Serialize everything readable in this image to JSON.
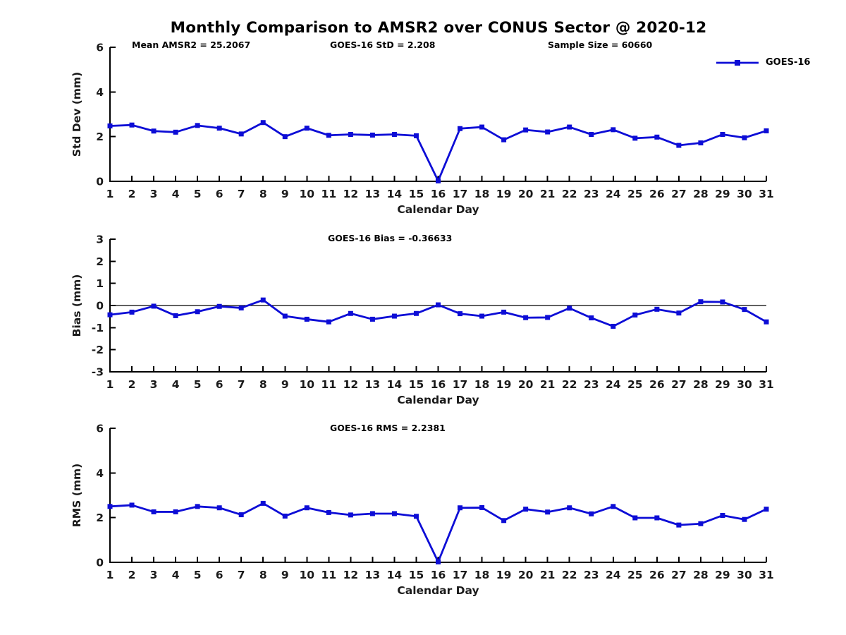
{
  "header": {
    "title": "Monthly Comparison to AMSR2 over CONUS Sector @ 2020-12"
  },
  "colors": {
    "series_blue": "#0d0dd6",
    "axis_black": "#000000",
    "tick_text": "#1a1a1a"
  },
  "chart_data": [
    {
      "type": "line",
      "ylabel": "Std Dev (mm)",
      "xlabel": "Calendar Day",
      "ylim": [
        0,
        6
      ],
      "yticks": [
        0,
        2,
        4,
        6
      ],
      "grid": false,
      "annotations": [
        "Mean AMSR2 = 25.2067",
        "GOES-16 StD = 2.208",
        "Sample Size = 60660"
      ],
      "legend": {
        "label": "GOES-16",
        "position": "top-right"
      },
      "x": [
        1,
        2,
        3,
        4,
        5,
        6,
        7,
        8,
        9,
        10,
        11,
        12,
        13,
        14,
        15,
        16,
        17,
        18,
        19,
        20,
        21,
        22,
        23,
        24,
        25,
        26,
        27,
        28,
        29,
        30,
        31
      ],
      "series": [
        {
          "name": "GOES-16",
          "values": [
            2.48,
            2.52,
            2.25,
            2.2,
            2.5,
            2.38,
            2.12,
            2.63,
            2.0,
            2.38,
            2.06,
            2.1,
            2.07,
            2.1,
            2.04,
            0.02,
            2.36,
            2.43,
            1.86,
            2.3,
            2.21,
            2.43,
            2.1,
            2.31,
            1.93,
            1.98,
            1.61,
            1.72,
            2.1,
            1.95,
            2.26
          ]
        }
      ]
    },
    {
      "type": "line",
      "ylabel": "Bias (mm)",
      "xlabel": "Calendar Day",
      "ylim": [
        -3,
        3
      ],
      "yticks": [
        -3,
        -2,
        -1,
        0,
        1,
        2,
        3
      ],
      "zero_line": true,
      "grid": false,
      "annotations": [
        "GOES-16 Bias = -0.36633"
      ],
      "x": [
        1,
        2,
        3,
        4,
        5,
        6,
        7,
        8,
        9,
        10,
        11,
        12,
        13,
        14,
        15,
        16,
        17,
        18,
        19,
        20,
        21,
        22,
        23,
        24,
        25,
        26,
        27,
        28,
        29,
        30,
        31
      ],
      "series": [
        {
          "name": "GOES-16",
          "values": [
            -0.42,
            -0.3,
            -0.03,
            -0.46,
            -0.28,
            -0.04,
            -0.11,
            0.25,
            -0.48,
            -0.62,
            -0.74,
            -0.36,
            -0.62,
            -0.48,
            -0.36,
            0.03,
            -0.37,
            -0.48,
            -0.3,
            -0.55,
            -0.54,
            -0.12,
            -0.56,
            -0.94,
            -0.43,
            -0.17,
            -0.34,
            0.17,
            0.16,
            -0.18,
            -0.74
          ]
        }
      ]
    },
    {
      "type": "line",
      "ylabel": "RMS (mm)",
      "xlabel": "Calendar Day",
      "ylim": [
        0,
        6
      ],
      "yticks": [
        0,
        2,
        4,
        6
      ],
      "grid": false,
      "annotations": [
        "GOES-16 RMS = 2.2381"
      ],
      "x": [
        1,
        2,
        3,
        4,
        5,
        6,
        7,
        8,
        9,
        10,
        11,
        12,
        13,
        14,
        15,
        16,
        17,
        18,
        19,
        20,
        21,
        22,
        23,
        24,
        25,
        26,
        27,
        28,
        29,
        30,
        31
      ],
      "series": [
        {
          "name": "GOES-16",
          "values": [
            2.5,
            2.56,
            2.26,
            2.26,
            2.5,
            2.44,
            2.13,
            2.64,
            2.07,
            2.44,
            2.23,
            2.12,
            2.18,
            2.18,
            2.06,
            0.02,
            2.44,
            2.45,
            1.87,
            2.38,
            2.25,
            2.44,
            2.17,
            2.5,
            1.99,
            1.99,
            1.67,
            1.73,
            2.1,
            1.92,
            2.38
          ]
        }
      ]
    }
  ]
}
